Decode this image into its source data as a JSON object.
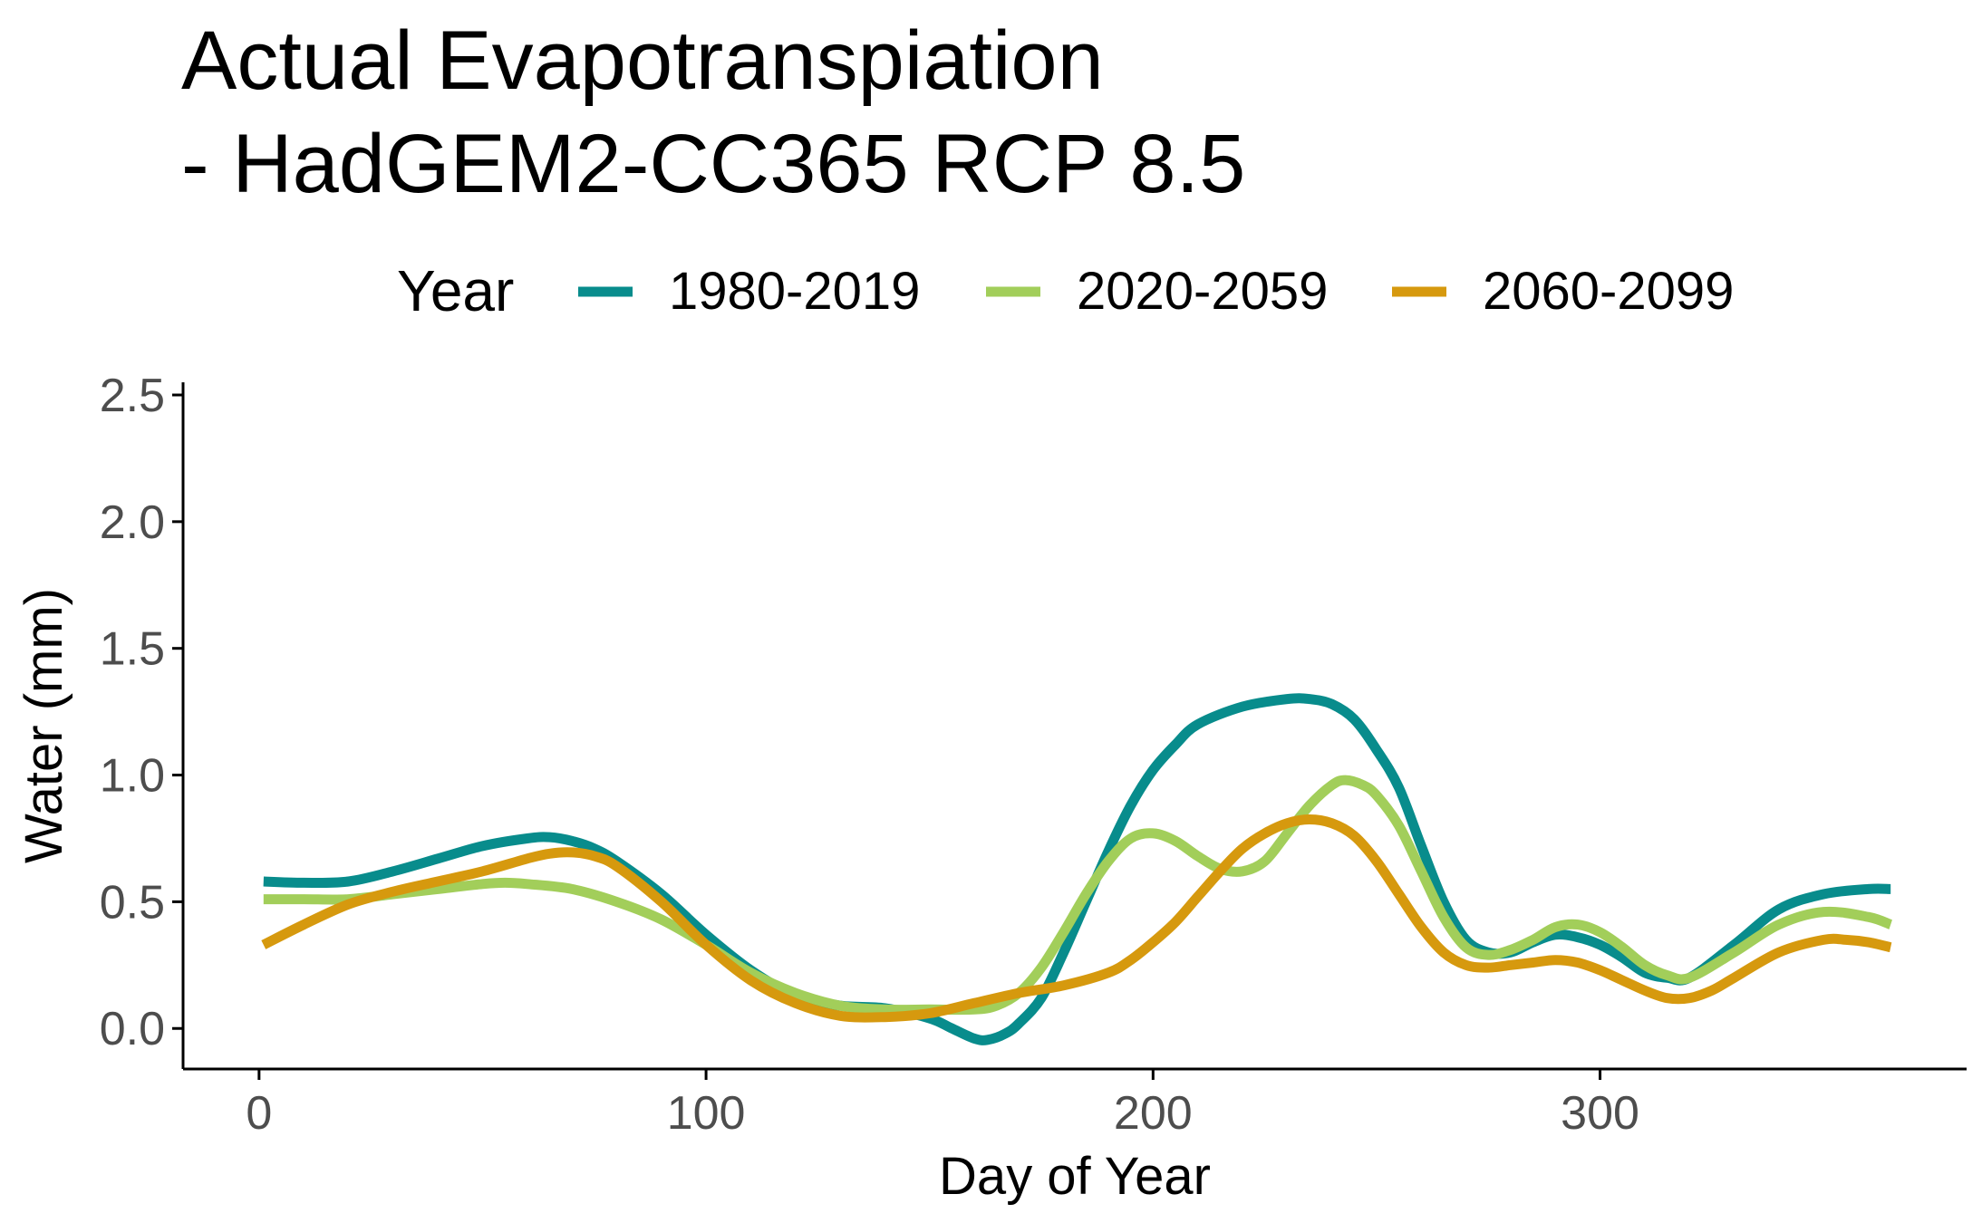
{
  "chart_data": {
    "type": "line",
    "title_lines": [
      "Actual Evapotranspiation",
      "- HadGEM2-CC365 RCP 8.5"
    ],
    "xlabel": "Day of Year",
    "ylabel": "Water (mm)",
    "xlim": [
      -17,
      382
    ],
    "ylim": [
      -0.16,
      2.55
    ],
    "x_ticks": [
      0,
      100,
      200,
      300
    ],
    "y_ticks": [
      0.0,
      0.5,
      1.0,
      1.5,
      2.0,
      2.5
    ],
    "x_tick_labels": [
      "0",
      "100",
      "200",
      "300"
    ],
    "y_tick_labels": [
      "0.0",
      "0.5",
      "1.0",
      "1.5",
      "2.0",
      "2.5"
    ],
    "grid": false,
    "legend": {
      "title": "Year",
      "position": "top"
    },
    "series": [
      {
        "name": "1980-2019",
        "color": "#088c8c",
        "x": [
          1,
          10,
          20,
          30,
          40,
          50,
          60,
          65,
          70,
          75,
          80,
          90,
          100,
          110,
          120,
          130,
          140,
          150,
          155,
          160,
          163,
          167,
          170,
          175,
          180,
          185,
          190,
          195,
          200,
          205,
          210,
          220,
          230,
          235,
          240,
          245,
          250,
          255,
          260,
          265,
          270,
          275,
          280,
          285,
          290,
          295,
          300,
          305,
          310,
          315,
          320,
          330,
          340,
          350,
          360,
          365
        ],
        "y": [
          0.58,
          0.575,
          0.58,
          0.62,
          0.67,
          0.72,
          0.75,
          0.755,
          0.74,
          0.71,
          0.66,
          0.53,
          0.37,
          0.23,
          0.13,
          0.09,
          0.08,
          0.04,
          0.0,
          -0.04,
          -0.045,
          -0.02,
          0.02,
          0.12,
          0.3,
          0.5,
          0.7,
          0.88,
          1.02,
          1.12,
          1.2,
          1.27,
          1.3,
          1.3,
          1.28,
          1.22,
          1.1,
          0.95,
          0.72,
          0.5,
          0.35,
          0.3,
          0.3,
          0.34,
          0.37,
          0.36,
          0.33,
          0.28,
          0.22,
          0.2,
          0.2,
          0.33,
          0.47,
          0.53,
          0.55,
          0.55
        ]
      },
      {
        "name": "2020-2059",
        "color": "#a2ce5a",
        "x": [
          1,
          10,
          20,
          30,
          40,
          50,
          55,
          60,
          70,
          80,
          90,
          100,
          110,
          120,
          130,
          140,
          150,
          160,
          165,
          170,
          175,
          180,
          185,
          190,
          195,
          200,
          205,
          210,
          215,
          220,
          225,
          230,
          235,
          240,
          243,
          247,
          250,
          255,
          260,
          265,
          270,
          275,
          280,
          285,
          290,
          295,
          300,
          305,
          310,
          315,
          320,
          330,
          340,
          350,
          360,
          365
        ],
        "y": [
          0.51,
          0.51,
          0.51,
          0.53,
          0.55,
          0.57,
          0.575,
          0.57,
          0.55,
          0.5,
          0.43,
          0.33,
          0.22,
          0.14,
          0.09,
          0.075,
          0.075,
          0.075,
          0.09,
          0.14,
          0.24,
          0.38,
          0.53,
          0.66,
          0.75,
          0.77,
          0.74,
          0.68,
          0.63,
          0.62,
          0.66,
          0.77,
          0.88,
          0.96,
          0.98,
          0.96,
          0.92,
          0.8,
          0.62,
          0.44,
          0.32,
          0.29,
          0.31,
          0.35,
          0.4,
          0.41,
          0.38,
          0.32,
          0.25,
          0.21,
          0.2,
          0.3,
          0.41,
          0.46,
          0.44,
          0.41
        ]
      },
      {
        "name": "2060-2099",
        "color": "#d6990e",
        "x": [
          1,
          10,
          20,
          30,
          40,
          50,
          60,
          65,
          70,
          75,
          80,
          90,
          100,
          110,
          120,
          130,
          140,
          150,
          160,
          170,
          180,
          190,
          195,
          200,
          205,
          210,
          215,
          220,
          225,
          230,
          235,
          240,
          245,
          250,
          255,
          260,
          265,
          270,
          275,
          280,
          285,
          290,
          295,
          300,
          305,
          310,
          315,
          320,
          325,
          330,
          340,
          350,
          355,
          360,
          365
        ],
        "y": [
          0.33,
          0.41,
          0.49,
          0.54,
          0.58,
          0.62,
          0.67,
          0.69,
          0.695,
          0.68,
          0.64,
          0.5,
          0.33,
          0.19,
          0.1,
          0.05,
          0.045,
          0.06,
          0.1,
          0.14,
          0.17,
          0.22,
          0.27,
          0.34,
          0.42,
          0.52,
          0.62,
          0.71,
          0.77,
          0.81,
          0.825,
          0.81,
          0.76,
          0.66,
          0.53,
          0.4,
          0.3,
          0.25,
          0.24,
          0.25,
          0.26,
          0.27,
          0.26,
          0.23,
          0.19,
          0.15,
          0.12,
          0.12,
          0.15,
          0.2,
          0.3,
          0.35,
          0.35,
          0.34,
          0.32
        ]
      }
    ]
  }
}
